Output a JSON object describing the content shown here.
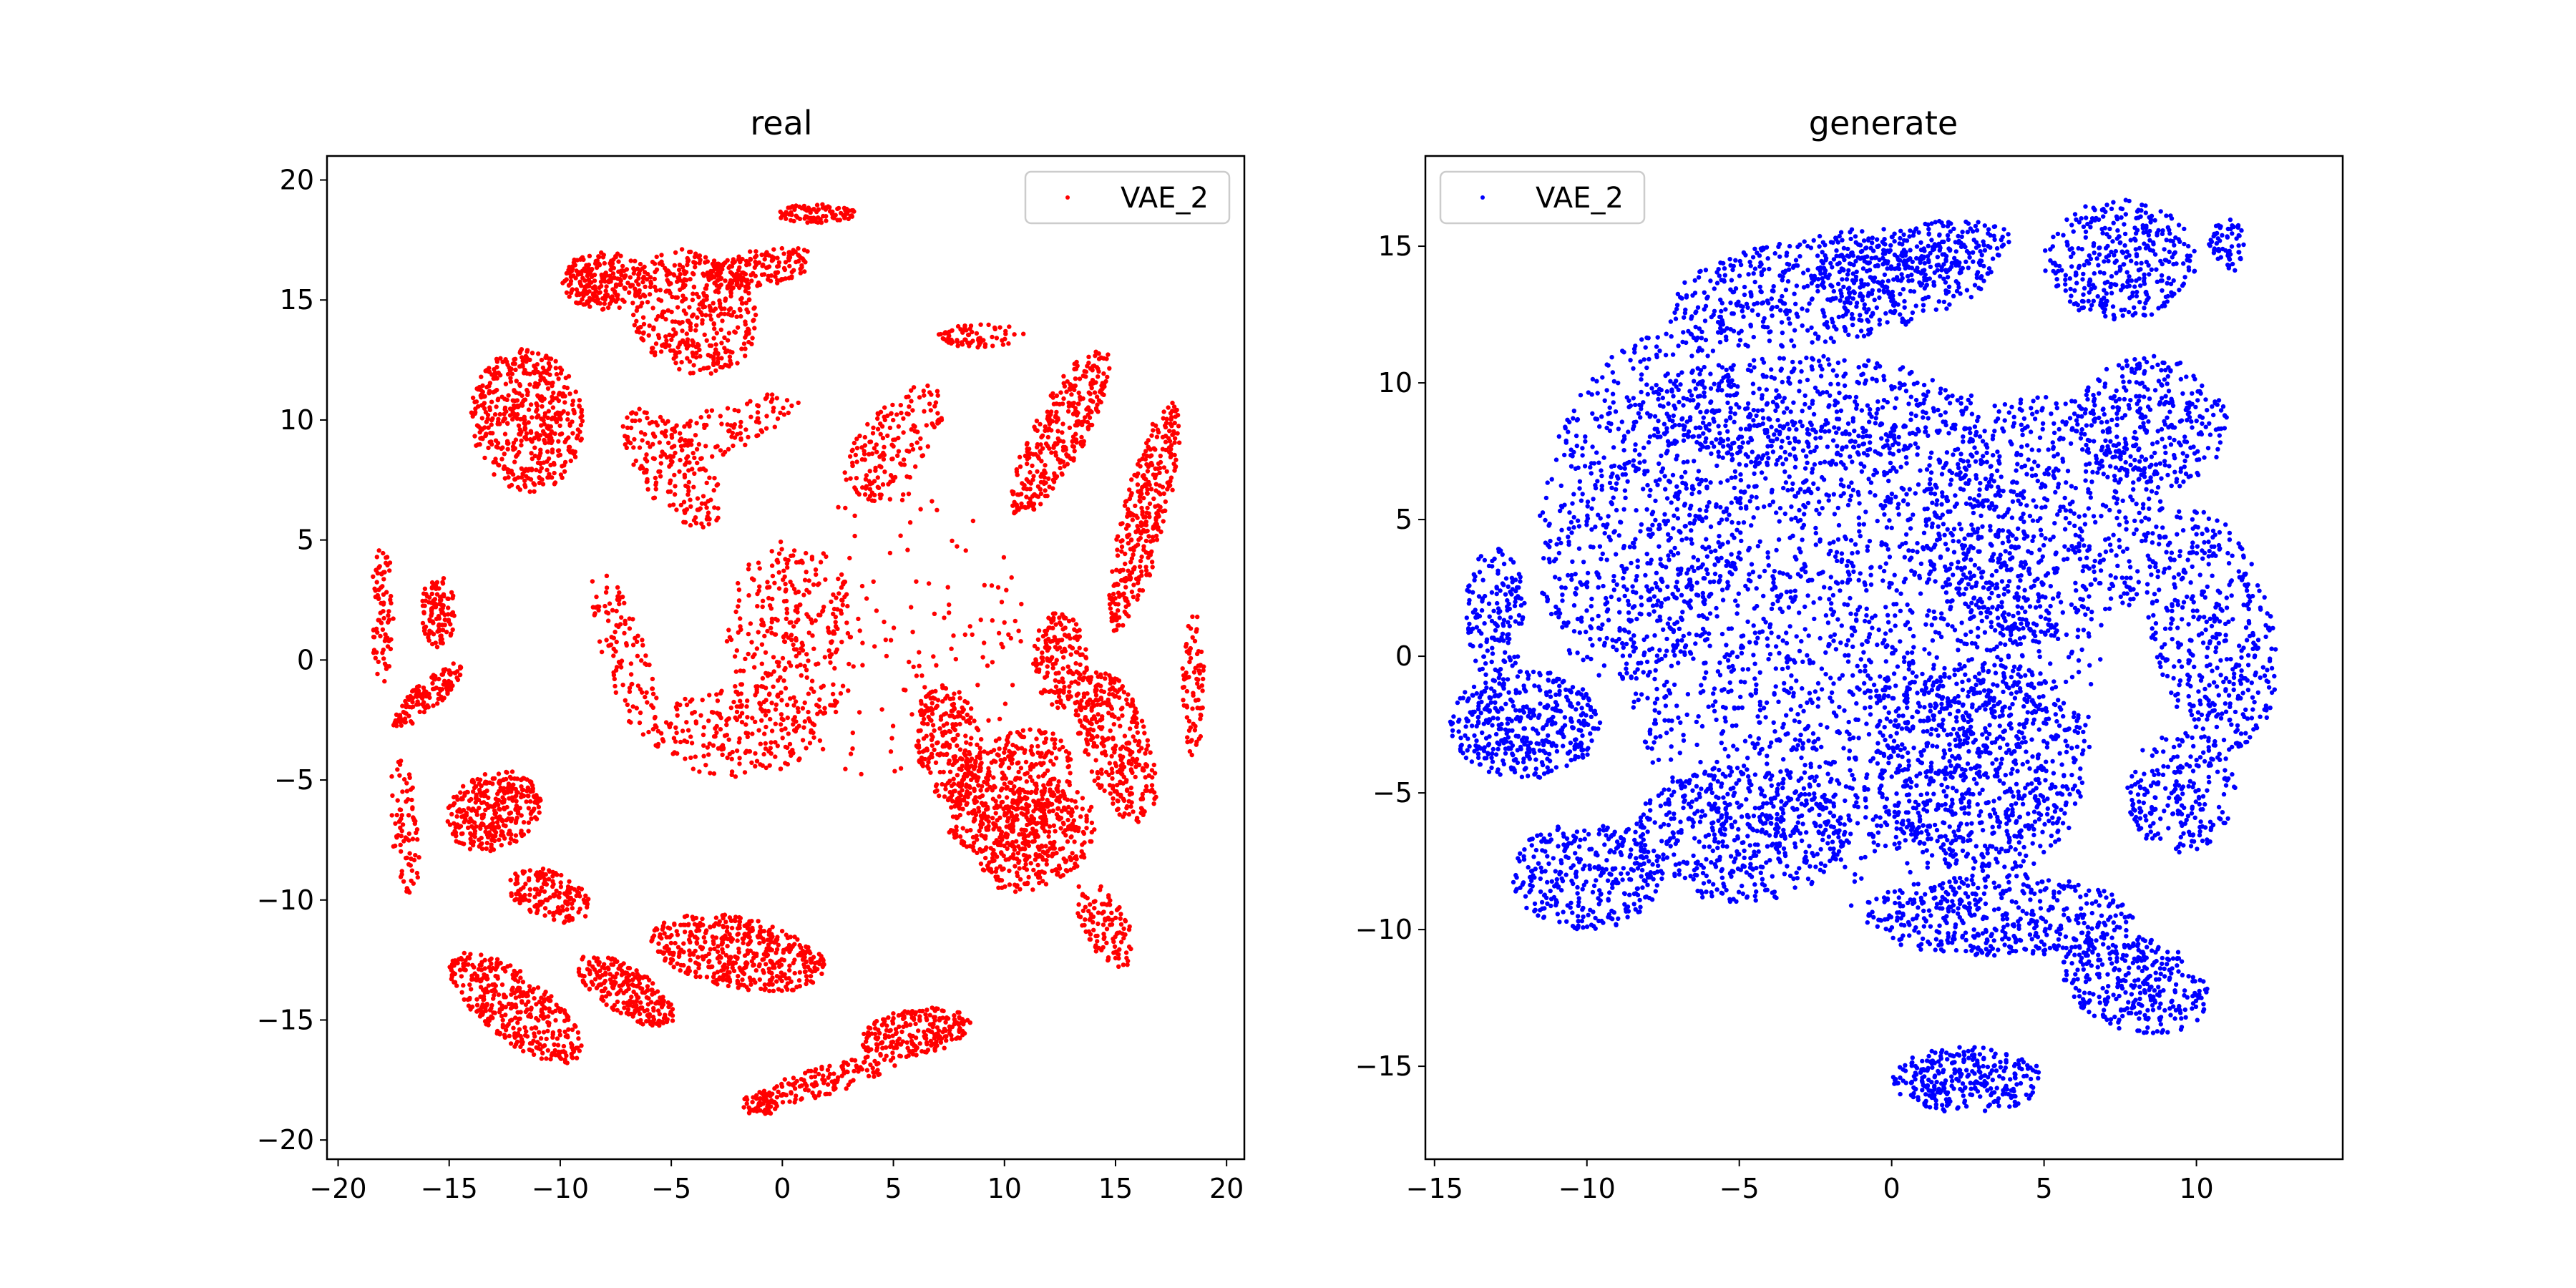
{
  "colors": {
    "background": "#ffffff",
    "axes": "#000000",
    "legend_border": "#cccccc"
  },
  "chart_data": [
    {
      "type": "scatter",
      "title": "real",
      "xlabel": "",
      "ylabel": "",
      "xlim": [
        -20.5,
        20.8
      ],
      "ylim": [
        -20.8,
        21.0
      ],
      "xticks": [
        -20,
        -15,
        -10,
        -5,
        0,
        5,
        10,
        15,
        20
      ],
      "yticks": [
        -20,
        -15,
        -10,
        -5,
        0,
        5,
        10,
        15,
        20
      ],
      "grid": false,
      "legend_position": "upper right",
      "series": [
        {
          "name": "VAE_2",
          "color": "#ff0000",
          "clusters": [
            {
              "cx": -11.5,
              "cy": 10.0,
              "rx": 2.5,
              "ry": 3.0,
              "rot": 10,
              "n": 500
            },
            {
              "cx": -8.0,
              "cy": 15.8,
              "rx": 2.0,
              "ry": 1.2,
              "rot": 0,
              "n": 230
            },
            {
              "cx": -4.0,
              "cy": 14.5,
              "rx": 3.0,
              "ry": 2.5,
              "rot": -30,
              "n": 400
            },
            {
              "cx": -1.0,
              "cy": 16.3,
              "rx": 2.5,
              "ry": 0.8,
              "rot": 10,
              "n": 170
            },
            {
              "cx": 1.5,
              "cy": 18.6,
              "rx": 1.8,
              "ry": 0.4,
              "rot": 0,
              "n": 90
            },
            {
              "cx": 12.5,
              "cy": 9.5,
              "rx": 1.2,
              "ry": 4.0,
              "rot": -30,
              "n": 320
            },
            {
              "cx": 16.3,
              "cy": 6.0,
              "rx": 1.0,
              "ry": 5.0,
              "rot": -15,
              "n": 340
            },
            {
              "cx": 15.0,
              "cy": -3.5,
              "rx": 1.5,
              "ry": 3.5,
              "rot": 20,
              "n": 340
            },
            {
              "cx": 10.2,
              "cy": -5.5,
              "rx": 3.2,
              "ry": 2.2,
              "rot": 40,
              "n": 420
            },
            {
              "cx": 11.5,
              "cy": -7.5,
              "rx": 2.8,
              "ry": 2.0,
              "rot": 30,
              "n": 340
            },
            {
              "cx": 7.5,
              "cy": -3.5,
              "rx": 1.5,
              "ry": 2.5,
              "rot": 10,
              "n": 240
            },
            {
              "cx": 12.5,
              "cy": 0.0,
              "rx": 1.2,
              "ry": 2.0,
              "rot": 0,
              "n": 160
            },
            {
              "cx": -13.0,
              "cy": -6.3,
              "rx": 2.2,
              "ry": 1.6,
              "rot": 20,
              "n": 340
            },
            {
              "cx": -15.5,
              "cy": 2.0,
              "rx": 0.8,
              "ry": 1.5,
              "rot": 0,
              "n": 110
            },
            {
              "cx": -16.0,
              "cy": -1.5,
              "rx": 2.0,
              "ry": 0.6,
              "rot": 40,
              "n": 130
            },
            {
              "cx": -12.0,
              "cy": -14.5,
              "rx": 3.5,
              "ry": 1.4,
              "rot": -35,
              "n": 380
            },
            {
              "cx": -7.0,
              "cy": -13.8,
              "rx": 2.5,
              "ry": 1.0,
              "rot": -30,
              "n": 240
            },
            {
              "cx": -2.0,
              "cy": -12.2,
              "rx": 4.0,
              "ry": 1.5,
              "rot": -10,
              "n": 480
            },
            {
              "cx": 6.0,
              "cy": -15.5,
              "rx": 2.5,
              "ry": 1.0,
              "rot": 10,
              "n": 230
            },
            {
              "cx": 2.0,
              "cy": -17.5,
              "rx": 3.5,
              "ry": 0.6,
              "rot": 15,
              "n": 150
            },
            {
              "cx": -1.0,
              "cy": -18.5,
              "rx": 0.8,
              "ry": 0.5,
              "rot": 0,
              "n": 50
            },
            {
              "cx": 0.5,
              "cy": 1.0,
              "rx": 3.0,
              "ry": 4.0,
              "rot": 0,
              "n": 260
            },
            {
              "cx": -2.0,
              "cy": -3.0,
              "rx": 3.5,
              "ry": 2.0,
              "rot": 0,
              "n": 210
            },
            {
              "cx": -10.5,
              "cy": -9.8,
              "rx": 2.0,
              "ry": 1.0,
              "rot": -20,
              "n": 160
            },
            {
              "cx": -5.0,
              "cy": 8.0,
              "rx": 1.5,
              "ry": 3.0,
              "rot": 40,
              "n": 160
            },
            {
              "cx": 5.0,
              "cy": 9.0,
              "rx": 1.5,
              "ry": 3.0,
              "rot": -40,
              "n": 170
            },
            {
              "cx": -7.0,
              "cy": 0.0,
              "rx": 1.0,
              "ry": 4.0,
              "rot": 20,
              "n": 120
            },
            {
              "cx": 14.5,
              "cy": -11.0,
              "rx": 1.0,
              "ry": 2.0,
              "rot": 30,
              "n": 110
            },
            {
              "cx": -17.0,
              "cy": -7.0,
              "rx": 0.6,
              "ry": 3.0,
              "rot": 5,
              "n": 80
            },
            {
              "cx": -18.0,
              "cy": 2.0,
              "rx": 0.5,
              "ry": 3.0,
              "rot": 0,
              "n": 80
            },
            {
              "cx": 18.5,
              "cy": -1.0,
              "rx": 0.5,
              "ry": 3.0,
              "rot": 0,
              "n": 80
            },
            {
              "cx": 5.0,
              "cy": 1.0,
              "rx": 6.0,
              "ry": 6.0,
              "rot": 0,
              "n": 160
            },
            {
              "cx": -3.0,
              "cy": 9.5,
              "rx": 4.0,
              "ry": 1.0,
              "rot": 20,
              "n": 110
            },
            {
              "cx": 9.0,
              "cy": 13.5,
              "rx": 2.0,
              "ry": 0.5,
              "rot": 0,
              "n": 70
            }
          ]
        }
      ]
    },
    {
      "type": "scatter",
      "title": "generate",
      "xlabel": "",
      "ylabel": "",
      "xlim": [
        -15.3,
        14.8
      ],
      "ylim": [
        -18.4,
        18.3
      ],
      "xticks": [
        -15,
        -10,
        -5,
        0,
        5,
        10
      ],
      "yticks": [
        -15,
        -10,
        -5,
        0,
        5,
        10,
        15
      ],
      "grid": false,
      "legend_position": "upper left",
      "series": [
        {
          "name": "VAE_2",
          "color": "#0000ff",
          "clusters": [
            {
              "cx": -2.0,
              "cy": 0.5,
              "rx": 7.0,
              "ry": 8.0,
              "rot": 0,
              "n": 1400
            },
            {
              "cx": -8.0,
              "cy": 5.5,
              "rx": 3.5,
              "ry": 6.5,
              "rot": -10,
              "n": 700
            },
            {
              "cx": -2.0,
              "cy": 13.5,
              "rx": 5.5,
              "ry": 2.0,
              "rot": 10,
              "n": 550
            },
            {
              "cx": 7.5,
              "cy": 14.5,
              "rx": 2.5,
              "ry": 2.2,
              "rot": 0,
              "n": 350
            },
            {
              "cx": 10.5,
              "cy": 1.0,
              "rx": 2.0,
              "ry": 4.5,
              "rot": 10,
              "n": 420
            },
            {
              "cx": -12.0,
              "cy": -2.5,
              "rx": 2.5,
              "ry": 2.0,
              "rot": 0,
              "n": 420
            },
            {
              "cx": -10.0,
              "cy": -8.0,
              "rx": 2.5,
              "ry": 2.0,
              "rot": 0,
              "n": 330
            },
            {
              "cx": 3.5,
              "cy": -9.5,
              "rx": 4.5,
              "ry": 1.5,
              "rot": 0,
              "n": 450
            },
            {
              "cx": 8.0,
              "cy": -12.0,
              "rx": 2.5,
              "ry": 1.7,
              "rot": -20,
              "n": 330
            },
            {
              "cx": 2.5,
              "cy": -15.5,
              "rx": 2.5,
              "ry": 1.2,
              "rot": 0,
              "n": 300
            },
            {
              "cx": 5.0,
              "cy": 5.0,
              "rx": 4.0,
              "ry": 4.5,
              "rot": 0,
              "n": 650
            },
            {
              "cx": 3.0,
              "cy": -4.0,
              "rx": 3.5,
              "ry": 4.0,
              "rot": 0,
              "n": 650
            },
            {
              "cx": -5.0,
              "cy": -6.5,
              "rx": 3.5,
              "ry": 2.5,
              "rot": 0,
              "n": 450
            },
            {
              "cx": -3.0,
              "cy": 9.0,
              "rx": 5.5,
              "ry": 2.0,
              "rot": 0,
              "n": 450
            },
            {
              "cx": 8.5,
              "cy": 8.5,
              "rx": 2.5,
              "ry": 2.5,
              "rot": 0,
              "n": 330
            },
            {
              "cx": -13.0,
              "cy": 1.5,
              "rx": 1.0,
              "ry": 2.5,
              "rot": 0,
              "n": 160
            },
            {
              "cx": 0.5,
              "cy": 14.5,
              "rx": 3.5,
              "ry": 1.2,
              "rot": 15,
              "n": 250
            },
            {
              "cx": 9.5,
              "cy": -5.0,
              "rx": 1.8,
              "ry": 2.2,
              "rot": 0,
              "n": 220
            },
            {
              "cx": 1.0,
              "cy": 0.0,
              "rx": 6.0,
              "ry": 10.0,
              "rot": 0,
              "n": 500
            },
            {
              "cx": 11.0,
              "cy": 15.0,
              "rx": 0.6,
              "ry": 1.0,
              "rot": 0,
              "n": 60
            }
          ]
        }
      ]
    }
  ]
}
